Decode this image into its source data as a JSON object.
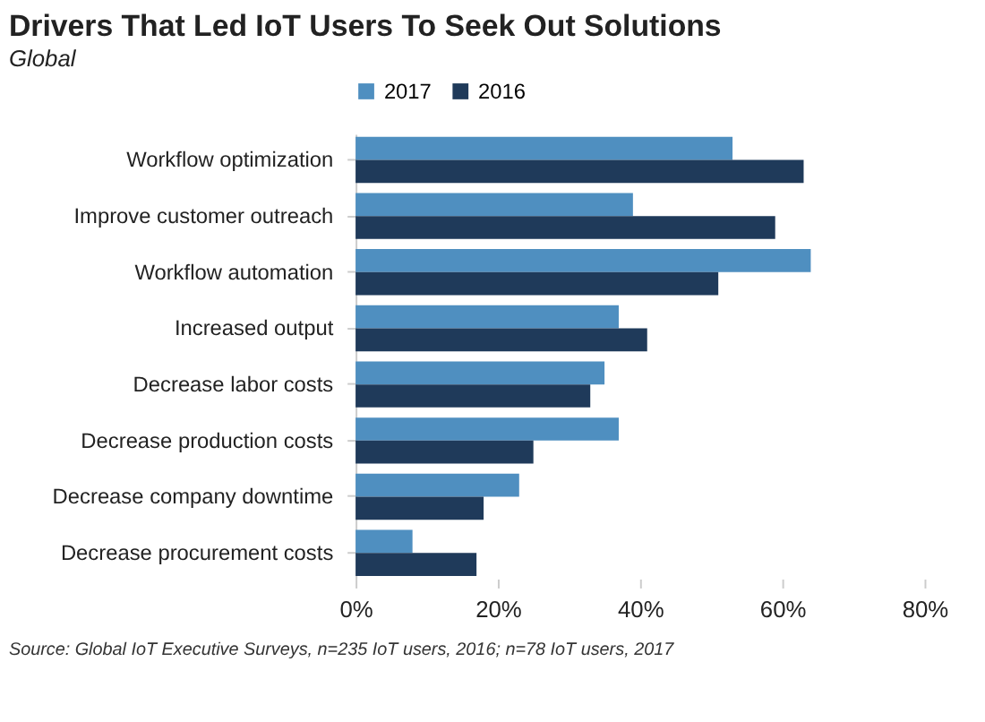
{
  "chart_data": {
    "type": "bar",
    "orientation": "horizontal",
    "title": "Drivers That Led IoT Users To Seek Out Solutions",
    "subtitle": "Global",
    "categories": [
      "Workflow optimization",
      "Improve customer outreach",
      "Workflow automation",
      "Increased output",
      "Decrease labor costs",
      "Decrease production costs",
      "Decrease company downtime",
      "Decrease procurement costs"
    ],
    "series": [
      {
        "name": "2017",
        "color": "#4f8fc0",
        "values": [
          53,
          39,
          64,
          37,
          35,
          37,
          23,
          8
        ]
      },
      {
        "name": "2016",
        "color": "#1f3a5a",
        "values": [
          63,
          59,
          51,
          41,
          33,
          25,
          18,
          17
        ]
      }
    ],
    "xlim": [
      0,
      80
    ],
    "xticks": [
      {
        "value": 0,
        "label": "0%"
      },
      {
        "value": 20,
        "label": "20%"
      },
      {
        "value": 40,
        "label": "40%"
      },
      {
        "value": 60,
        "label": "60%"
      },
      {
        "value": 80,
        "label": "80%"
      }
    ],
    "grid": false,
    "legend": "top",
    "annotations": [
      "Source: Global IoT Executive Surveys, n=235 IoT users, 2016; n=78 IoT users, 2017"
    ]
  }
}
